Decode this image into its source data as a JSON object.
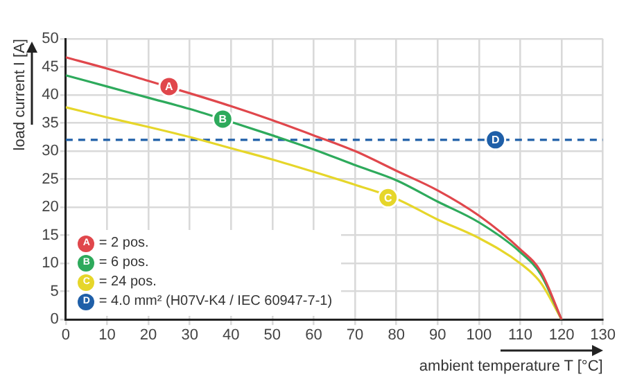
{
  "chart_data": {
    "type": "line",
    "xlabel": "ambient temperature T [°C]",
    "ylabel": "load current I [A]",
    "x": [
      0,
      10,
      20,
      30,
      40,
      50,
      60,
      70,
      80,
      90,
      100,
      110,
      115,
      120
    ],
    "series": [
      {
        "name": "= 2 pos.",
        "color": "#e0474c",
        "values": [
          46.7,
          44.7,
          42.5,
          40.3,
          38,
          35.5,
          32.8,
          30,
          26.5,
          23,
          18.5,
          12.5,
          8.5,
          0
        ]
      },
      {
        "name": "= 6 pos.",
        "color": "#2eaa5c",
        "values": [
          43.5,
          41.5,
          39.5,
          37.5,
          35.2,
          32.8,
          30.3,
          27.5,
          24.8,
          21,
          17.3,
          12,
          8,
          0
        ]
      },
      {
        "name": "= 24 pos.",
        "color": "#e6d62a",
        "values": [
          37.8,
          36,
          34.3,
          32.5,
          30.5,
          28.5,
          26.3,
          24,
          21.5,
          17.8,
          14.5,
          10,
          6.5,
          0
        ]
      },
      {
        "name": "= 4.0 mm² (H07V-K4 / IEC 60947-7-1)",
        "color": "#1f5fa8",
        "x": [
          0,
          130
        ],
        "values": [
          32,
          32
        ],
        "line_style": "dashed"
      }
    ],
    "annotations": [
      {
        "text": "A",
        "x": 25,
        "y": 41.5
      },
      {
        "text": "B",
        "x": 38,
        "y": 35.7
      },
      {
        "text": "C",
        "x": 78,
        "y": 21.7
      },
      {
        "text": "D",
        "x": 104,
        "y": 32
      }
    ],
    "xlim": [
      0,
      130
    ],
    "xticks": [
      0,
      10,
      20,
      30,
      40,
      50,
      60,
      70,
      80,
      90,
      100,
      110,
      120,
      130
    ],
    "ylim": [
      0,
      50
    ],
    "yticks": [
      0,
      5,
      10,
      15,
      20,
      25,
      30,
      35,
      40,
      45,
      50
    ],
    "grid": true,
    "legend": "bottom left",
    "marker": "none",
    "line_style": "solid"
  }
}
